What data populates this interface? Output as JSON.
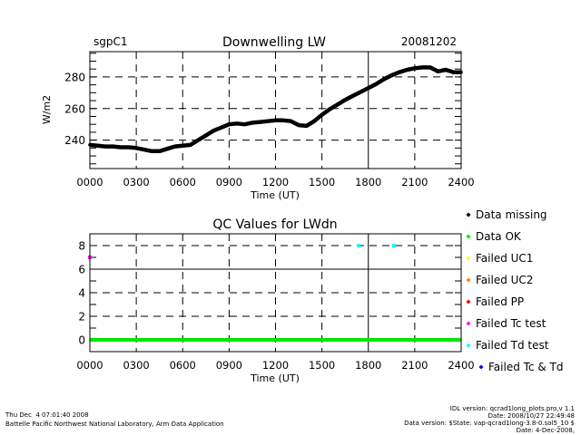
{
  "chart_data": [
    {
      "type": "line",
      "site": "sgpC1",
      "title": "Downwelling LW",
      "date": "20081202",
      "xlabel": "Time (UT)",
      "ylabel": "W/m2",
      "xlim": [
        0,
        24
      ],
      "ylim": [
        222,
        296
      ],
      "x_ticks": [
        0,
        3,
        6,
        9,
        12,
        15,
        18,
        21,
        24
      ],
      "x_tick_labels": [
        "0000",
        "0300",
        "0600",
        "0900",
        "1200",
        "1500",
        "1800",
        "2100",
        "2400"
      ],
      "y_ticks": [
        240,
        260,
        280
      ],
      "y_tick_labels": [
        "240",
        "260",
        "280"
      ],
      "grid": true,
      "series": [
        {
          "name": "LWdn",
          "color": "#000000",
          "x": [
            0,
            0.5,
            1,
            1.5,
            2,
            2.5,
            3,
            3.5,
            4,
            4.5,
            5,
            5.5,
            6,
            6.5,
            7,
            7.5,
            8,
            8.5,
            9,
            9.5,
            10,
            10.5,
            11,
            11.5,
            12,
            12.5,
            13,
            13.5,
            14,
            14.5,
            15,
            15.5,
            16,
            16.5,
            17,
            17.5,
            18,
            18.5,
            19,
            19.5,
            20,
            20.5,
            21,
            21.5,
            22,
            22.5,
            23,
            23.5,
            24
          ],
          "y": [
            237,
            236.5,
            236,
            236,
            235.5,
            235.5,
            235,
            234,
            233,
            233,
            234.5,
            236,
            236.5,
            237,
            240,
            243,
            246,
            248,
            250,
            250.5,
            250,
            251,
            251.5,
            252,
            252.5,
            252.5,
            252,
            249.5,
            249,
            252,
            256,
            259.5,
            262.5,
            265.5,
            268,
            270.5,
            273,
            275.5,
            278.5,
            281,
            283,
            284.5,
            285.5,
            286,
            286,
            283.5,
            284.5,
            283,
            283
          ]
        }
      ]
    },
    {
      "type": "scatter",
      "title": "QC Values for LWdn",
      "xlabel": "Time (UT)",
      "xlim": [
        0,
        24
      ],
      "ylim": [
        -1,
        9
      ],
      "x_ticks": [
        0,
        3,
        6,
        9,
        12,
        15,
        18,
        21,
        24
      ],
      "x_tick_labels": [
        "0000",
        "0300",
        "0600",
        "0900",
        "1200",
        "1500",
        "1800",
        "2100",
        "2400"
      ],
      "y_ticks": [
        0,
        2,
        4,
        6,
        8
      ],
      "y_tick_labels": [
        "0",
        "2",
        "4",
        "6",
        "8"
      ],
      "grid": true,
      "legend_position": "right",
      "legend": [
        {
          "label": "Data missing",
          "color": "#000000"
        },
        {
          "label": "Data OK",
          "color": "#00e600"
        },
        {
          "label": "Failed UC1",
          "color": "#ffff00"
        },
        {
          "label": "Failed UC2",
          "color": "#ff8000"
        },
        {
          "label": "Failed PP",
          "color": "#ff0000"
        },
        {
          "label": "Failed Tc test",
          "color": "#ff00ff"
        },
        {
          "label": "Failed Td test",
          "color": "#00ffff"
        },
        {
          "label": "Failed Tc & Td",
          "color": "#0000ff"
        }
      ],
      "series": [
        {
          "name": "Data OK",
          "color": "#00e600",
          "kind": "line",
          "x": [
            0,
            24
          ],
          "y": [
            0,
            0
          ]
        },
        {
          "name": "Failed Tc test",
          "color": "#ff00ff",
          "kind": "points",
          "x": [
            0
          ],
          "y": [
            7
          ]
        },
        {
          "name": "Failed Td test",
          "color": "#00ffff",
          "kind": "points",
          "x": [
            17.37,
            19.66
          ],
          "y": [
            8,
            8
          ]
        }
      ]
    }
  ],
  "footer": {
    "timestamp": "Thu Dec  4 07:01:40 2008",
    "organization": "Battelle Pacific Northwest National Laboratory, Arm Data Application",
    "idl_version": "IDL version: qcrad1long_plots.pro,v 1.1",
    "idl_date": "Date: 2008/10/27 22:49:48",
    "data_version": "Data version: $State: vap-qcrad1long-3.8-0.sol5_10 $",
    "data_date": "Date: 4-Dec-2008,"
  }
}
